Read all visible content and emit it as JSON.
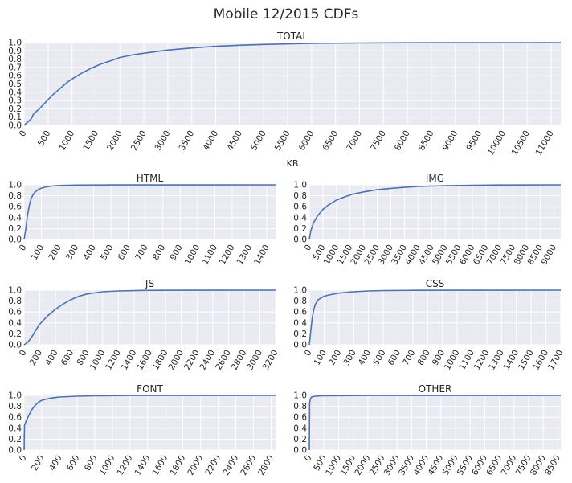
{
  "figure": {
    "title": "Mobile 12/2015 CDFs"
  },
  "colors": {
    "plot_bg": "#eaeaf2",
    "grid": "#ffffff",
    "line": "#4c72b0",
    "text": "#262626"
  },
  "chart_data": [
    {
      "id": "total",
      "type": "line",
      "title": "TOTAL",
      "xlabel": "KB",
      "xlim": [
        0,
        11200
      ],
      "ylim": [
        0,
        1.0
      ],
      "xticks": [
        0,
        500,
        1000,
        1500,
        2000,
        2500,
        3000,
        3500,
        4000,
        4500,
        5000,
        5500,
        6000,
        6500,
        7000,
        7500,
        8000,
        8500,
        9000,
        9500,
        10000,
        10500,
        11000
      ],
      "yticks": [
        0.0,
        0.1,
        0.2,
        0.3,
        0.4,
        0.5,
        0.6,
        0.7,
        0.8,
        0.9,
        1.0
      ],
      "grid": true,
      "x": [
        0,
        150,
        200,
        300,
        400,
        500,
        600,
        700,
        800,
        900,
        1000,
        1200,
        1400,
        1600,
        1800,
        2000,
        2300,
        2600,
        3000,
        3500,
        4000,
        4500,
        5000,
        6000,
        7000,
        8000,
        9000,
        11200
      ],
      "y": [
        0,
        0.08,
        0.14,
        0.19,
        0.25,
        0.31,
        0.37,
        0.42,
        0.47,
        0.52,
        0.56,
        0.63,
        0.69,
        0.74,
        0.78,
        0.82,
        0.855,
        0.88,
        0.91,
        0.935,
        0.955,
        0.968,
        0.978,
        0.99,
        0.995,
        0.998,
        0.999,
        1.0
      ]
    },
    {
      "id": "html",
      "type": "line",
      "title": "HTML",
      "xlabel": "",
      "xlim": [
        0,
        1450
      ],
      "ylim": [
        0,
        1.0
      ],
      "xticks": [
        0,
        100,
        200,
        300,
        400,
        500,
        600,
        700,
        800,
        900,
        1000,
        1100,
        1200,
        1300,
        1400
      ],
      "yticks": [
        0.0,
        0.2,
        0.4,
        0.6,
        0.8,
        1.0
      ],
      "grid": true,
      "x": [
        0,
        10,
        20,
        30,
        40,
        50,
        60,
        80,
        100,
        130,
        160,
        200,
        300,
        500,
        1450
      ],
      "y": [
        0,
        0.2,
        0.45,
        0.62,
        0.74,
        0.81,
        0.86,
        0.91,
        0.94,
        0.965,
        0.978,
        0.988,
        0.995,
        0.999,
        1.0
      ]
    },
    {
      "id": "img",
      "type": "line",
      "title": "IMG",
      "xlabel": "",
      "xlim": [
        0,
        9250
      ],
      "ylim": [
        0,
        1.0
      ],
      "xticks": [
        0,
        500,
        1000,
        1500,
        2000,
        2500,
        3000,
        3500,
        4000,
        4500,
        5000,
        5500,
        6000,
        6500,
        7000,
        7500,
        8000,
        8500,
        9000
      ],
      "yticks": [
        0.0,
        0.2,
        0.4,
        0.6,
        0.8,
        1.0
      ],
      "grid": true,
      "x": [
        0,
        50,
        150,
        300,
        500,
        700,
        1000,
        1300,
        1600,
        2000,
        2500,
        3000,
        3500,
        4000,
        5000,
        6000,
        7000,
        9250
      ],
      "y": [
        0,
        0.15,
        0.3,
        0.43,
        0.55,
        0.63,
        0.72,
        0.78,
        0.83,
        0.87,
        0.91,
        0.935,
        0.955,
        0.97,
        0.985,
        0.993,
        0.997,
        1.0
      ]
    },
    {
      "id": "js",
      "type": "line",
      "title": "JS",
      "xlabel": "",
      "xlim": [
        0,
        3200
      ],
      "ylim": [
        0,
        1.0
      ],
      "xticks": [
        0,
        200,
        400,
        600,
        800,
        1000,
        1200,
        1400,
        1600,
        1800,
        2000,
        2200,
        2400,
        2600,
        2800,
        3000,
        3200
      ],
      "yticks": [
        0.0,
        0.2,
        0.4,
        0.6,
        0.8,
        1.0
      ],
      "grid": true,
      "x": [
        0,
        50,
        100,
        150,
        200,
        300,
        400,
        500,
        600,
        700,
        800,
        1000,
        1200,
        1500,
        2000,
        3200
      ],
      "y": [
        0,
        0.05,
        0.15,
        0.27,
        0.38,
        0.53,
        0.65,
        0.75,
        0.83,
        0.89,
        0.93,
        0.97,
        0.985,
        0.995,
        0.999,
        1.0
      ]
    },
    {
      "id": "css",
      "type": "line",
      "title": "CSS",
      "xlabel": "",
      "xlim": [
        0,
        1700
      ],
      "ylim": [
        0,
        1.0
      ],
      "xticks": [
        0,
        100,
        200,
        300,
        400,
        500,
        600,
        700,
        800,
        900,
        1000,
        1100,
        1200,
        1300,
        1400,
        1500,
        1600,
        1700
      ],
      "yticks": [
        0.0,
        0.2,
        0.4,
        0.6,
        0.8,
        1.0
      ],
      "grid": true,
      "x": [
        0,
        10,
        20,
        30,
        40,
        60,
        80,
        100,
        150,
        200,
        300,
        400,
        500,
        700,
        1000,
        1700
      ],
      "y": [
        0,
        0.25,
        0.5,
        0.64,
        0.74,
        0.82,
        0.86,
        0.89,
        0.92,
        0.945,
        0.97,
        0.985,
        0.992,
        0.997,
        0.999,
        1.0
      ]
    },
    {
      "id": "font",
      "type": "line",
      "title": "FONT",
      "xlabel": "",
      "xlim": [
        0,
        2850
      ],
      "ylim": [
        0,
        1.0
      ],
      "xticks": [
        0,
        200,
        400,
        600,
        800,
        1000,
        1200,
        1400,
        1600,
        1800,
        2000,
        2200,
        2400,
        2600,
        2800
      ],
      "yticks": [
        0.0,
        0.2,
        0.4,
        0.6,
        0.8,
        1.0
      ],
      "grid": true,
      "x": [
        0,
        5,
        20,
        50,
        80,
        120,
        160,
        200,
        300,
        400,
        600,
        800,
        1200,
        2850
      ],
      "y": [
        0,
        0.45,
        0.52,
        0.62,
        0.72,
        0.81,
        0.87,
        0.91,
        0.95,
        0.97,
        0.985,
        0.993,
        0.998,
        1.0
      ]
    },
    {
      "id": "other",
      "type": "line",
      "title": "OTHER",
      "xlabel": "",
      "xlim": [
        0,
        8600
      ],
      "ylim": [
        0,
        1.0
      ],
      "xticks": [
        0,
        500,
        1000,
        1500,
        2000,
        2500,
        3000,
        3500,
        4000,
        4500,
        5000,
        5500,
        6000,
        6500,
        7000,
        7500,
        8000,
        8500
      ],
      "yticks": [
        0.0,
        0.2,
        0.4,
        0.6,
        0.8,
        1.0
      ],
      "grid": true,
      "x": [
        0,
        10,
        30,
        60,
        100,
        200,
        400,
        1000,
        2000,
        8600
      ],
      "y": [
        0,
        0.85,
        0.93,
        0.96,
        0.975,
        0.985,
        0.992,
        0.996,
        0.998,
        1.0
      ]
    }
  ]
}
